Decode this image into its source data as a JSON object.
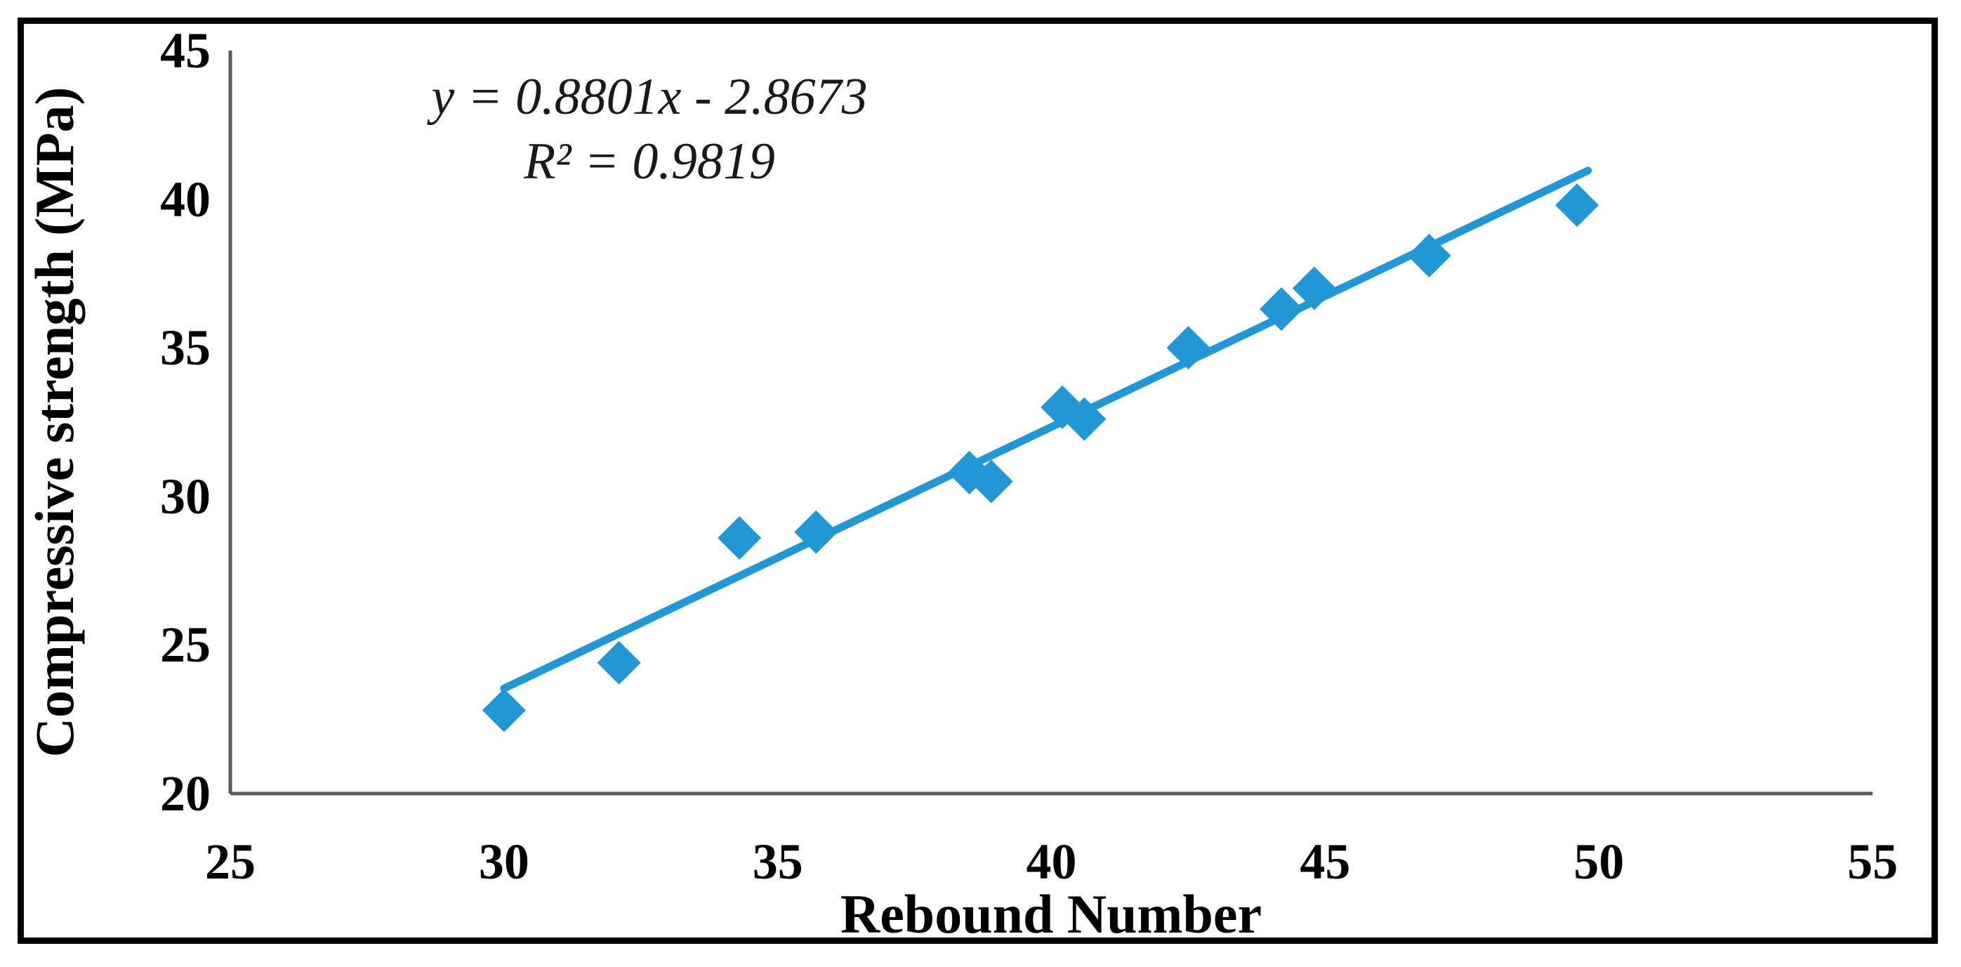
{
  "figure": {
    "equation_line1": "y = 0.8801x - 2.8673",
    "equation_line2": "R² = 0.9819"
  },
  "axes": {
    "x": {
      "title": "Rebound Number",
      "min": 25,
      "max": 55,
      "ticks": [
        25,
        30,
        35,
        40,
        45,
        50,
        55
      ]
    },
    "y": {
      "title": "Compressive strength (MPa)",
      "min": 20,
      "max": 45,
      "ticks": [
        20,
        25,
        30,
        35,
        40,
        45
      ]
    }
  },
  "chart_data": {
    "type": "scatter",
    "title": "",
    "xlabel": "Rebound Number",
    "ylabel": "Compressive strength (MPa)",
    "xlim": [
      25,
      55
    ],
    "ylim": [
      20,
      45
    ],
    "grid": false,
    "legend": false,
    "series": [
      {
        "name": "compressive-strength-vs-rebound-number",
        "marker": "diamond",
        "color": "#2297d6",
        "points": [
          [
            30.0,
            22.8
          ],
          [
            32.1,
            24.4
          ],
          [
            34.3,
            28.6
          ],
          [
            35.7,
            28.8
          ],
          [
            38.5,
            30.8
          ],
          [
            38.9,
            30.5
          ],
          [
            40.2,
            33.0
          ],
          [
            40.6,
            32.6
          ],
          [
            42.5,
            35.0
          ],
          [
            44.2,
            36.3
          ],
          [
            44.8,
            37.0
          ],
          [
            46.9,
            38.1
          ],
          [
            49.6,
            39.8
          ]
        ]
      }
    ],
    "trendline": {
      "slope": 0.8801,
      "intercept": -2.8673,
      "x_start": 30.0,
      "x_end": 49.8,
      "equation": "y = 0.8801x - 2.8673",
      "r_squared": 0.9819,
      "color": "#2297d6"
    }
  },
  "colors": {
    "accent": "#2297d6",
    "axis_line": "#595959",
    "frame": "#000000",
    "text": "#000000"
  }
}
